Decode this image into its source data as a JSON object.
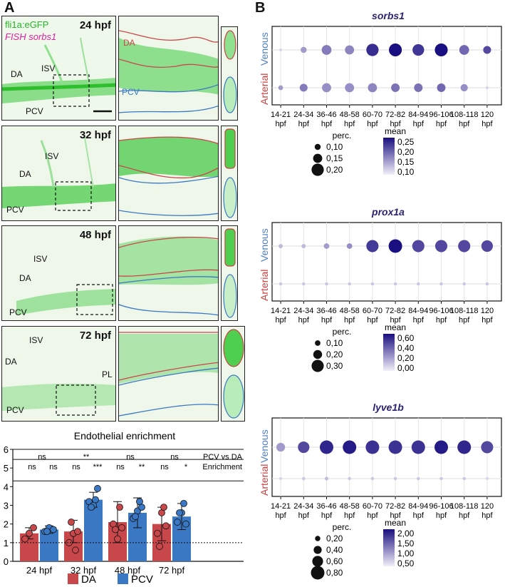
{
  "panels": {
    "a": "A",
    "b": "B"
  },
  "legend_text": {
    "reporter": "fli1a:eGFP",
    "fish": "FISH sorbs1"
  },
  "micro": [
    {
      "stage": "24 hpf",
      "labels": {
        "DA": "DA",
        "ISV": "ISV",
        "PCV": "PCV"
      }
    },
    {
      "stage": "32 hpf",
      "labels": {
        "DA": "DA",
        "ISV": "ISV",
        "PCV": "PCV"
      }
    },
    {
      "stage": "48 hpf",
      "labels": {
        "DA": "DA",
        "ISV": "ISV",
        "PCV": "PCV"
      }
    },
    {
      "stage": "72 hpf",
      "labels": {
        "DA": "DA",
        "ISV": "ISV",
        "PCV": "PCV",
        "PL": "PL"
      }
    }
  ],
  "zoom_labels": {
    "DA": "DA",
    "PCV": "PCV"
  },
  "colors": {
    "da": "#c8474a",
    "pcv": "#3b78c4",
    "arterial": "#cc3d3d",
    "venous": "#4f7fc4",
    "gfp": "#2fc02f",
    "fish": "#e020a0",
    "dot_dark": "#1a0f80",
    "dot_light": "#d9d4ea"
  },
  "chart_data": [
    {
      "type": "bar",
      "title": "Endothelial enrichment",
      "categories": [
        "24 hpf",
        "32 hpf",
        "48 hpf",
        "72 hpf"
      ],
      "ylim": [
        0,
        6
      ],
      "yticks": [
        0,
        1,
        2,
        3,
        4,
        5,
        6
      ],
      "reference_line": 1,
      "series": [
        {
          "name": "DA",
          "values": [
            1.5,
            1.6,
            2.1,
            2.0
          ],
          "errors": [
            0.3,
            0.6,
            1.1,
            0.9
          ],
          "points": [
            [
              1.2,
              1.5,
              1.8
            ],
            [
              1.0,
              1.5,
              1.6,
              2.1,
              0.6
            ],
            [
              2.0,
              1.2,
              1.8,
              1.7,
              2.9
            ],
            [
              1.5,
              2.6,
              1.9,
              0.8,
              2.9
            ]
          ]
        },
        {
          "name": "PCV",
          "values": [
            1.7,
            3.3,
            2.6,
            2.4
          ],
          "errors": [
            0.2,
            0.4,
            0.8,
            0.7
          ],
          "points": [
            [
              1.6,
              1.8,
              1.7,
              1.6
            ],
            [
              3.2,
              3.0,
              3.9,
              2.9,
              3.3
            ],
            [
              2.3,
              2.7,
              2.9,
              2.4,
              3.2
            ],
            [
              2.1,
              2.6,
              2.0,
              2.6,
              3.1
            ]
          ]
        }
      ],
      "significance": {
        "pcv_vs_da_label": "PCV vs DA",
        "pcv_vs_da": [
          "ns",
          "**",
          "ns",
          "ns"
        ],
        "enrichment_label": "Enrichment",
        "enrichment": [
          [
            "ns",
            "ns"
          ],
          [
            "ns",
            "***"
          ],
          [
            "ns",
            "**"
          ],
          [
            "ns",
            "*"
          ]
        ]
      }
    },
    {
      "type": "scatter",
      "title": "sorbs1",
      "rows": [
        "Venous",
        "Arterial"
      ],
      "categories": [
        [
          "14-21",
          "hpf"
        ],
        [
          "24-34",
          "hpf"
        ],
        [
          "36-46",
          "hpf"
        ],
        [
          "48-58",
          "hpf"
        ],
        [
          "60-70",
          "hpf"
        ],
        [
          "72-82",
          "hpf"
        ],
        [
          "84-94",
          "hpf"
        ],
        [
          "96-106",
          "hpf"
        ],
        [
          "108-118",
          "hpf"
        ],
        [
          "120",
          "hpf"
        ]
      ],
      "venous_perc": [
        0.05,
        0.1,
        0.16,
        0.15,
        0.2,
        0.21,
        0.19,
        0.21,
        0.16,
        0.13
      ],
      "venous_mean": [
        0.08,
        0.14,
        0.17,
        0.16,
        0.25,
        0.28,
        0.24,
        0.28,
        0.19,
        0.22
      ],
      "arterial_perc": [
        0.08,
        0.13,
        0.15,
        0.15,
        0.15,
        0.14,
        0.14,
        0.14,
        0.12,
        0.05
      ],
      "arterial_mean": [
        0.14,
        0.17,
        0.15,
        0.15,
        0.16,
        0.18,
        0.18,
        0.19,
        0.15,
        0.08
      ],
      "legend": {
        "size_title": "perc.",
        "size_values": [
          "0,10",
          "0,15",
          "0,20"
        ],
        "size_numbers": [
          0.1,
          0.15,
          0.2
        ],
        "color_title": "mean",
        "color_values": [
          "0,25",
          "0,20",
          "0,15",
          "0,10"
        ]
      },
      "size_range": [
        0.05,
        0.22
      ],
      "color_range": [
        0.08,
        0.28
      ]
    },
    {
      "type": "scatter",
      "title": "prox1a",
      "rows": [
        "Venous",
        "Arterial"
      ],
      "categories": [
        [
          "14-21",
          "hpf"
        ],
        [
          "24-34",
          "hpf"
        ],
        [
          "36-46",
          "hpf"
        ],
        [
          "48-58",
          "hpf"
        ],
        [
          "60-70",
          "hpf"
        ],
        [
          "72-82",
          "hpf"
        ],
        [
          "84-94",
          "hpf"
        ],
        [
          "96-106",
          "hpf"
        ],
        [
          "108-118",
          "hpf"
        ],
        [
          "120",
          "hpf"
        ]
      ],
      "venous_perc": [
        0.06,
        0.06,
        0.1,
        0.1,
        0.3,
        0.34,
        0.3,
        0.3,
        0.3,
        0.28
      ],
      "venous_mean": [
        0.1,
        0.1,
        0.2,
        0.25,
        0.55,
        0.7,
        0.5,
        0.5,
        0.5,
        0.5
      ],
      "arterial_perc": [
        0.03,
        0.03,
        0.03,
        0.03,
        0.03,
        0.03,
        0.03,
        0.03,
        0.03,
        0.03
      ],
      "arterial_mean": [
        0.05,
        0.05,
        0.05,
        0.05,
        0.05,
        0.05,
        0.05,
        0.05,
        0.05,
        0.05
      ],
      "legend": {
        "size_title": "perc.",
        "size_values": [
          "0,10",
          "0,20",
          "0,30"
        ],
        "size_numbers": [
          0.1,
          0.2,
          0.3
        ],
        "color_title": "mean",
        "color_values": [
          "0,60",
          "0,40",
          "0,20",
          "0,00"
        ]
      },
      "size_range": [
        0.02,
        0.34
      ],
      "color_range": [
        0.0,
        0.7
      ]
    },
    {
      "type": "scatter",
      "title": "lyve1b",
      "rows": [
        "Venous",
        "Arterial"
      ],
      "categories": [
        [
          "14-21",
          "hpf"
        ],
        [
          "24-34",
          "hpf"
        ],
        [
          "36-46",
          "hpf"
        ],
        [
          "48-58",
          "hpf"
        ],
        [
          "60-70",
          "hpf"
        ],
        [
          "72-82",
          "hpf"
        ],
        [
          "84-94",
          "hpf"
        ],
        [
          "96-106",
          "hpf"
        ],
        [
          "108-118",
          "hpf"
        ],
        [
          "120",
          "hpf"
        ]
      ],
      "venous_perc": [
        0.45,
        0.65,
        0.8,
        0.8,
        0.8,
        0.8,
        0.8,
        0.8,
        0.8,
        0.7
      ],
      "venous_mean": [
        0.8,
        1.5,
        1.8,
        1.9,
        1.7,
        1.7,
        1.7,
        1.9,
        1.8,
        1.5
      ],
      "arterial_perc": [
        0.03,
        0.06,
        0.08,
        0.05,
        0.05,
        0.05,
        0.05,
        0.05,
        0.05,
        0.03
      ],
      "arterial_mean": [
        0.3,
        0.4,
        0.5,
        0.4,
        0.4,
        0.4,
        0.4,
        0.4,
        0.4,
        0.3
      ],
      "legend": {
        "size_title": "perc.",
        "size_values": [
          "0,20",
          "0,40",
          "0,60",
          "0,80"
        ],
        "size_numbers": [
          0.2,
          0.4,
          0.6,
          0.8
        ],
        "color_title": "mean",
        "color_values": [
          "2,00",
          "1,50",
          "1,00",
          "0,50"
        ]
      },
      "size_range": [
        0.02,
        0.8
      ],
      "color_range": [
        0.3,
        2.0
      ]
    }
  ]
}
